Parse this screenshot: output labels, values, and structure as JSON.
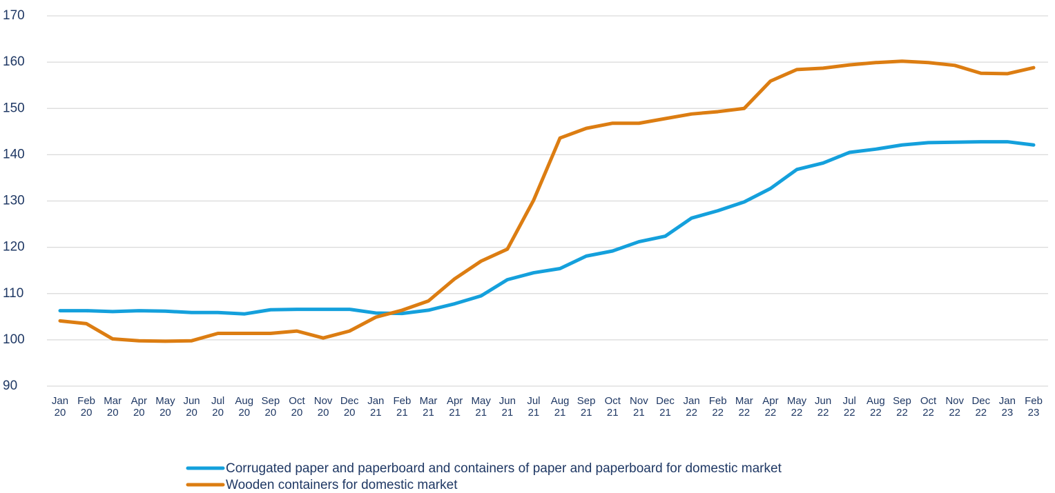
{
  "chart_data": {
    "type": "line",
    "categories": [
      "Jan 20",
      "Feb 20",
      "Mar 20",
      "Apr 20",
      "May 20",
      "Jun 20",
      "Jul 20",
      "Aug 20",
      "Sep 20",
      "Oct 20",
      "Nov 20",
      "Dec 20",
      "Jan 21",
      "Feb 21",
      "Mar 21",
      "Apr 21",
      "May 21",
      "Jun 21",
      "Jul 21",
      "Aug 21",
      "Sep 21",
      "Oct 21",
      "Nov 21",
      "Dec 21",
      "Jan 22",
      "Feb 22",
      "Mar 22",
      "Apr 22",
      "May 22",
      "Jun 22",
      "Jul 22",
      "Aug 22",
      "Sep 22",
      "Oct 22",
      "Nov 22",
      "Dec 22",
      "Jan 23",
      "Feb 23"
    ],
    "series": [
      {
        "name": "Corrugated paper and paperboard and containers of paper and paperboard for domestic market",
        "color": "#14a0dc",
        "values": [
          106.3,
          106.3,
          106.1,
          106.3,
          106.2,
          105.9,
          105.9,
          105.6,
          106.5,
          106.6,
          106.6,
          106.6,
          105.8,
          105.7,
          106.4,
          107.8,
          109.5,
          113,
          114.5,
          115.4,
          118.1,
          119.2,
          121.2,
          122.4,
          126.3,
          127.9,
          129.8,
          132.7,
          136.8,
          138.2,
          140.5,
          141.2,
          142.1,
          142.6,
          142.7,
          142.8,
          142.8,
          142.1
        ]
      },
      {
        "name": "Wooden containers for domestic market",
        "color": "#dc7d12",
        "values": [
          104.1,
          103.5,
          100.2,
          99.8,
          99.7,
          99.8,
          101.4,
          101.4,
          101.4,
          101.9,
          100.4,
          101.9,
          104.9,
          106.4,
          108.4,
          113.2,
          117,
          119.6,
          130.2,
          143.6,
          145.7,
          146.8,
          146.8,
          147.8,
          148.8,
          149.3,
          150,
          155.9,
          158.4,
          158.7,
          159.4,
          159.9,
          160.2,
          159.9,
          159.3,
          157.6,
          157.5,
          158.8
        ]
      }
    ],
    "ylim": [
      90,
      170
    ],
    "yticks": [
      90,
      100,
      110,
      120,
      130,
      140,
      150,
      160,
      170
    ],
    "grid": true
  }
}
